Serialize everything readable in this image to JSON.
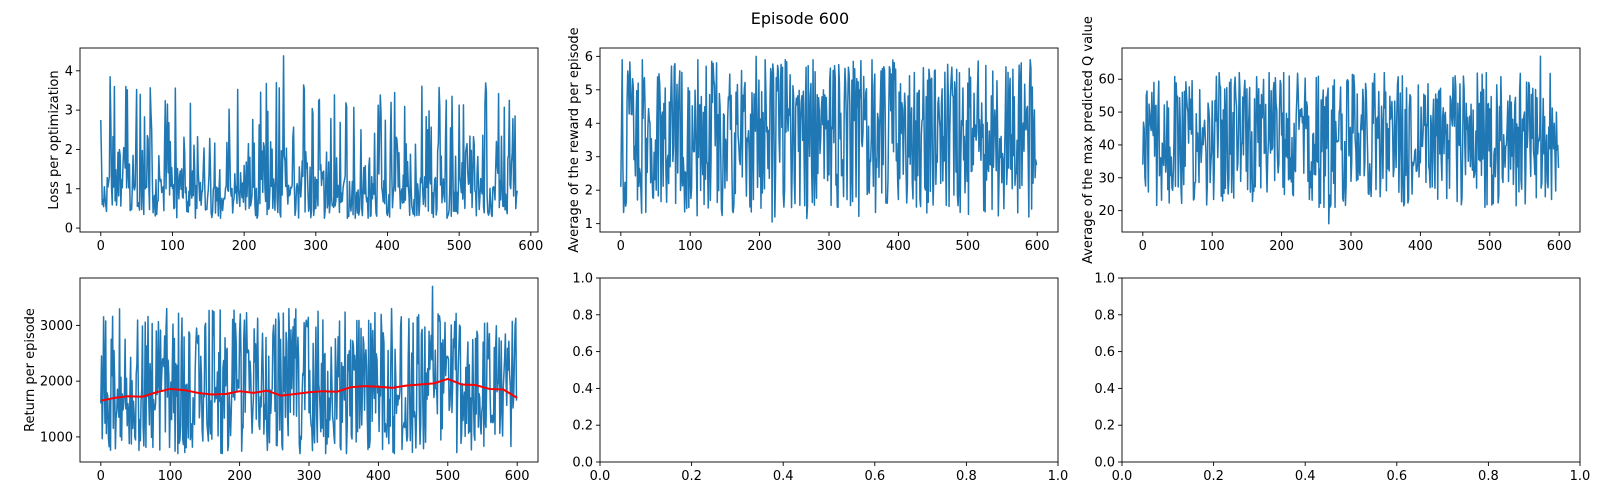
{
  "figure": {
    "suptitle": "Episode 600"
  },
  "chart_data": [
    {
      "type": "line",
      "ylabel": "Loss per optimization",
      "xlabel": "",
      "xlim": [
        -29,
        610
      ],
      "ylim": [
        -0.1,
        4.58
      ],
      "xticks": [
        0,
        100,
        200,
        300,
        400,
        500,
        600
      ],
      "yticks": [
        0,
        1,
        2,
        3,
        4
      ],
      "series": [
        {
          "name": "loss",
          "color": "#1f77b4",
          "n": 582,
          "x_start": 0,
          "x_step": 1,
          "min": 0.25,
          "max": 3.7,
          "mean": 1.05,
          "spread": 0.55,
          "tail": 2.2,
          "seed": 11,
          "anchors": [
            [
              0,
              2.75
            ],
            [
              1,
              1.75
            ],
            [
              2,
              0.6
            ],
            [
              5,
              1.05
            ],
            [
              13,
              3.85
            ],
            [
              35,
              3.6
            ],
            [
              55,
              3.4
            ],
            [
              255,
              4.38
            ],
            [
              490,
              3.35
            ],
            [
              578,
              2.85
            ],
            [
              581,
              0.95
            ]
          ]
        }
      ]
    },
    {
      "type": "line",
      "ylabel": "Average of the reward per episode",
      "xlabel": "",
      "xlim": [
        -30,
        630
      ],
      "ylim": [
        0.75,
        6.25
      ],
      "xticks": [
        0,
        100,
        200,
        300,
        400,
        500,
        600
      ],
      "yticks": [
        1,
        2,
        3,
        4,
        5,
        6
      ],
      "series": [
        {
          "name": "reward",
          "color": "#1f77b4",
          "n": 600,
          "x_start": 0,
          "x_step": 1,
          "min": 1.2,
          "max": 5.9,
          "mean": 3.8,
          "spread": 0.95,
          "tail": 0.9,
          "seed": 23,
          "anchors": [
            [
              0,
              2.1
            ],
            [
              1,
              3.9
            ],
            [
              3,
              2.7
            ],
            [
              195,
              6.0
            ],
            [
              218,
              1.05
            ],
            [
              268,
              1.15
            ],
            [
              596,
              4.4
            ],
            [
              599,
              2.75
            ]
          ]
        }
      ]
    },
    {
      "type": "line",
      "ylabel": "Average of the max predicted Q value",
      "xlabel": "",
      "xlim": [
        -30,
        630
      ],
      "ylim": [
        13.5,
        69.5
      ],
      "xticks": [
        0,
        100,
        200,
        300,
        400,
        500,
        600
      ],
      "yticks": [
        20,
        30,
        40,
        50,
        60
      ],
      "series": [
        {
          "name": "max_q",
          "color": "#1f77b4",
          "n": 600,
          "x_start": 0,
          "x_step": 1,
          "min": 21,
          "max": 62,
          "mean": 42,
          "spread": 9,
          "tail": 0.9,
          "seed": 37,
          "anchors": [
            [
              0,
              34
            ],
            [
              2,
              45
            ],
            [
              5,
              55
            ],
            [
              268,
              16
            ],
            [
              573,
              67
            ],
            [
              596,
              50
            ],
            [
              599,
              33
            ]
          ]
        }
      ]
    },
    {
      "type": "line",
      "ylabel": "Return per episode",
      "xlabel": "",
      "xlim": [
        -30,
        630
      ],
      "ylim": [
        550,
        3850
      ],
      "xticks": [
        0,
        100,
        200,
        300,
        400,
        500,
        600
      ],
      "yticks": [
        1000,
        2000,
        3000
      ],
      "series": [
        {
          "name": "return",
          "color": "#1f77b4",
          "n": 600,
          "x_start": 0,
          "x_step": 1,
          "min": 700,
          "max": 3300,
          "mean": 1850,
          "spread": 520,
          "tail": 0.9,
          "seed": 53,
          "anchors": [
            [
              0,
              1600
            ],
            [
              1,
              2450
            ],
            [
              3,
              1700
            ],
            [
              478,
              3700
            ],
            [
              596,
              2400
            ],
            [
              599,
              1650
            ]
          ]
        },
        {
          "name": "moving_average",
          "color": "#ff0000",
          "width": 2,
          "x": [
            0,
            20,
            40,
            60,
            80,
            100,
            120,
            140,
            160,
            180,
            200,
            220,
            240,
            260,
            280,
            300,
            320,
            340,
            360,
            380,
            400,
            420,
            440,
            460,
            480,
            500,
            520,
            540,
            560,
            580,
            600
          ],
          "values": [
            1650,
            1700,
            1730,
            1720,
            1800,
            1860,
            1840,
            1790,
            1760,
            1770,
            1820,
            1790,
            1830,
            1740,
            1770,
            1800,
            1820,
            1810,
            1890,
            1910,
            1900,
            1880,
            1920,
            1940,
            1960,
            2040,
            1940,
            1930,
            1860,
            1850,
            1700
          ]
        }
      ]
    },
    {
      "type": "line",
      "ylabel": "",
      "xlabel": "",
      "xlim": [
        0,
        1
      ],
      "ylim": [
        0,
        1
      ],
      "xticks": [
        0.0,
        0.2,
        0.4,
        0.6,
        0.8,
        1.0
      ],
      "yticks": [
        0.0,
        0.2,
        0.4,
        0.6,
        0.8,
        1.0
      ],
      "series": []
    },
    {
      "type": "line",
      "ylabel": "",
      "xlabel": "",
      "xlim": [
        0,
        1
      ],
      "ylim": [
        0,
        1
      ],
      "xticks": [
        0.0,
        0.2,
        0.4,
        0.6,
        0.8,
        1.0
      ],
      "yticks": [
        0.0,
        0.2,
        0.4,
        0.6,
        0.8,
        1.0
      ],
      "series": []
    }
  ]
}
